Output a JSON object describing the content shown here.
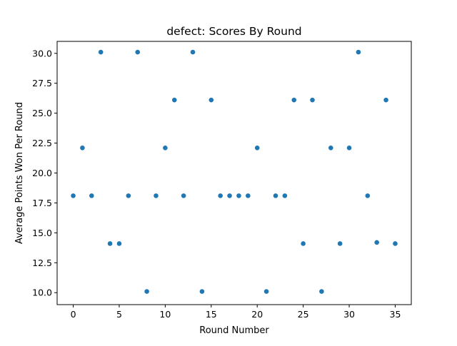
{
  "chart_data": {
    "type": "scatter",
    "title": "defect: Scores By Round",
    "xlabel": "Round Number",
    "ylabel": "Average Points Won Per Round",
    "xlim": [
      -1.75,
      36.75
    ],
    "ylim": [
      9.0,
      31.0
    ],
    "grid": false,
    "marker_color": "#1f77b4",
    "x_ticks": [
      0,
      5,
      10,
      15,
      20,
      25,
      30,
      35
    ],
    "y_ticks": [
      "10.0",
      "12.5",
      "15.0",
      "17.5",
      "20.0",
      "22.5",
      "25.0",
      "27.5",
      "30.0"
    ],
    "points": [
      {
        "x": 0,
        "y": 18.1
      },
      {
        "x": 1,
        "y": 22.1
      },
      {
        "x": 2,
        "y": 18.1
      },
      {
        "x": 3,
        "y": 30.1
      },
      {
        "x": 4,
        "y": 14.1
      },
      {
        "x": 5,
        "y": 14.1
      },
      {
        "x": 6,
        "y": 18.1
      },
      {
        "x": 7,
        "y": 30.1
      },
      {
        "x": 8,
        "y": 10.1
      },
      {
        "x": 9,
        "y": 18.1
      },
      {
        "x": 10,
        "y": 22.1
      },
      {
        "x": 11,
        "y": 26.1
      },
      {
        "x": 12,
        "y": 18.1
      },
      {
        "x": 13,
        "y": 30.1
      },
      {
        "x": 14,
        "y": 10.1
      },
      {
        "x": 15,
        "y": 26.1
      },
      {
        "x": 16,
        "y": 18.1
      },
      {
        "x": 17,
        "y": 18.1
      },
      {
        "x": 18,
        "y": 18.1
      },
      {
        "x": 19,
        "y": 18.1
      },
      {
        "x": 20,
        "y": 22.1
      },
      {
        "x": 21,
        "y": 10.1
      },
      {
        "x": 22,
        "y": 18.1
      },
      {
        "x": 23,
        "y": 18.1
      },
      {
        "x": 24,
        "y": 26.1
      },
      {
        "x": 25,
        "y": 14.1
      },
      {
        "x": 26,
        "y": 26.1
      },
      {
        "x": 27,
        "y": 10.1
      },
      {
        "x": 28,
        "y": 22.1
      },
      {
        "x": 29,
        "y": 14.1
      },
      {
        "x": 30,
        "y": 22.1
      },
      {
        "x": 31,
        "y": 30.1
      },
      {
        "x": 32,
        "y": 18.1
      },
      {
        "x": 33,
        "y": 14.2
      },
      {
        "x": 34,
        "y": 26.1
      },
      {
        "x": 35,
        "y": 14.1
      }
    ]
  }
}
